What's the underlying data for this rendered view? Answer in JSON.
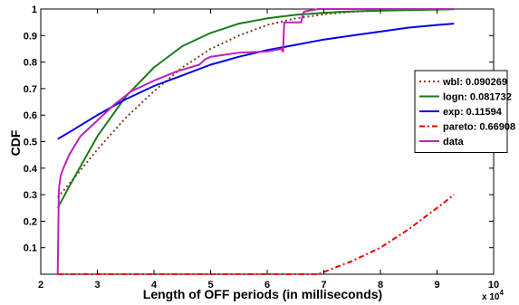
{
  "chart_data": {
    "type": "line",
    "xlabel": "Length of OFF periods (in milliseconds)",
    "ylabel": "CDF",
    "x_multiplier_label": "x 10",
    "x_multiplier_exp": "4",
    "xlim": [
      2,
      10
    ],
    "ylim": [
      0,
      1
    ],
    "x_ticks": [
      "2",
      "3",
      "4",
      "5",
      "6",
      "7",
      "8",
      "9",
      "10"
    ],
    "y_ticks": [
      "0.1",
      "0.2",
      "0.3",
      "0.4",
      "0.5",
      "0.6",
      "0.7",
      "0.8",
      "0.9",
      "1"
    ],
    "grid": false,
    "legend_position": "right",
    "series": [
      {
        "name": "wbl: 0.090269",
        "color": "#8b3a1a",
        "style": "dotted",
        "x": [
          2.3,
          2.5,
          3.0,
          3.5,
          4.0,
          4.5,
          5.0,
          5.5,
          6.0,
          6.5,
          7.0,
          7.5,
          8.0,
          8.5,
          9.0,
          9.3
        ],
        "y": [
          0.29,
          0.34,
          0.47,
          0.59,
          0.69,
          0.78,
          0.85,
          0.9,
          0.94,
          0.965,
          0.98,
          0.99,
          0.995,
          0.998,
          0.999,
          1.0
        ]
      },
      {
        "name": "logn: 0.081732",
        "color": "#1a7a1a",
        "style": "solid",
        "x": [
          2.3,
          2.5,
          3.0,
          3.5,
          4.0,
          4.5,
          5.0,
          5.5,
          6.0,
          6.5,
          7.0,
          7.5,
          8.0,
          8.5,
          9.0,
          9.3
        ],
        "y": [
          0.25,
          0.33,
          0.52,
          0.67,
          0.78,
          0.86,
          0.91,
          0.945,
          0.965,
          0.978,
          0.986,
          0.991,
          0.994,
          0.996,
          0.998,
          0.999
        ]
      },
      {
        "name": "exp: 0.11594",
        "color": "#0000ee",
        "style": "solid",
        "x": [
          2.3,
          2.5,
          3.0,
          3.5,
          4.0,
          4.5,
          5.0,
          5.5,
          6.0,
          6.5,
          7.0,
          7.5,
          8.0,
          8.5,
          9.0,
          9.3
        ],
        "y": [
          0.51,
          0.535,
          0.6,
          0.66,
          0.71,
          0.75,
          0.79,
          0.82,
          0.845,
          0.865,
          0.885,
          0.9,
          0.915,
          0.93,
          0.94,
          0.945
        ]
      },
      {
        "name": "pareto: 0.66908",
        "color": "#ee0000",
        "style": "dashdot",
        "x": [
          2.3,
          6.9,
          7.5,
          8.0,
          8.5,
          9.0,
          9.3
        ],
        "y": [
          0.0,
          0.0,
          0.05,
          0.1,
          0.17,
          0.25,
          0.3
        ]
      },
      {
        "name": "data",
        "color": "#bb22bb",
        "style": "solid",
        "x": [
          2.3,
          2.32,
          2.35,
          2.4,
          2.5,
          2.7,
          3.0,
          3.3,
          3.6,
          4.0,
          4.4,
          4.8,
          4.9,
          5.0,
          5.5,
          6.0,
          6.25,
          6.28,
          6.3,
          6.6,
          6.62,
          6.65,
          6.9,
          7.5,
          8.5,
          9.3
        ],
        "y": [
          0.0,
          0.32,
          0.37,
          0.4,
          0.45,
          0.52,
          0.58,
          0.64,
          0.69,
          0.73,
          0.765,
          0.79,
          0.81,
          0.82,
          0.835,
          0.84,
          0.85,
          0.84,
          0.95,
          0.95,
          0.97,
          0.99,
          1.0,
          1.0,
          1.0,
          1.0
        ]
      }
    ]
  }
}
